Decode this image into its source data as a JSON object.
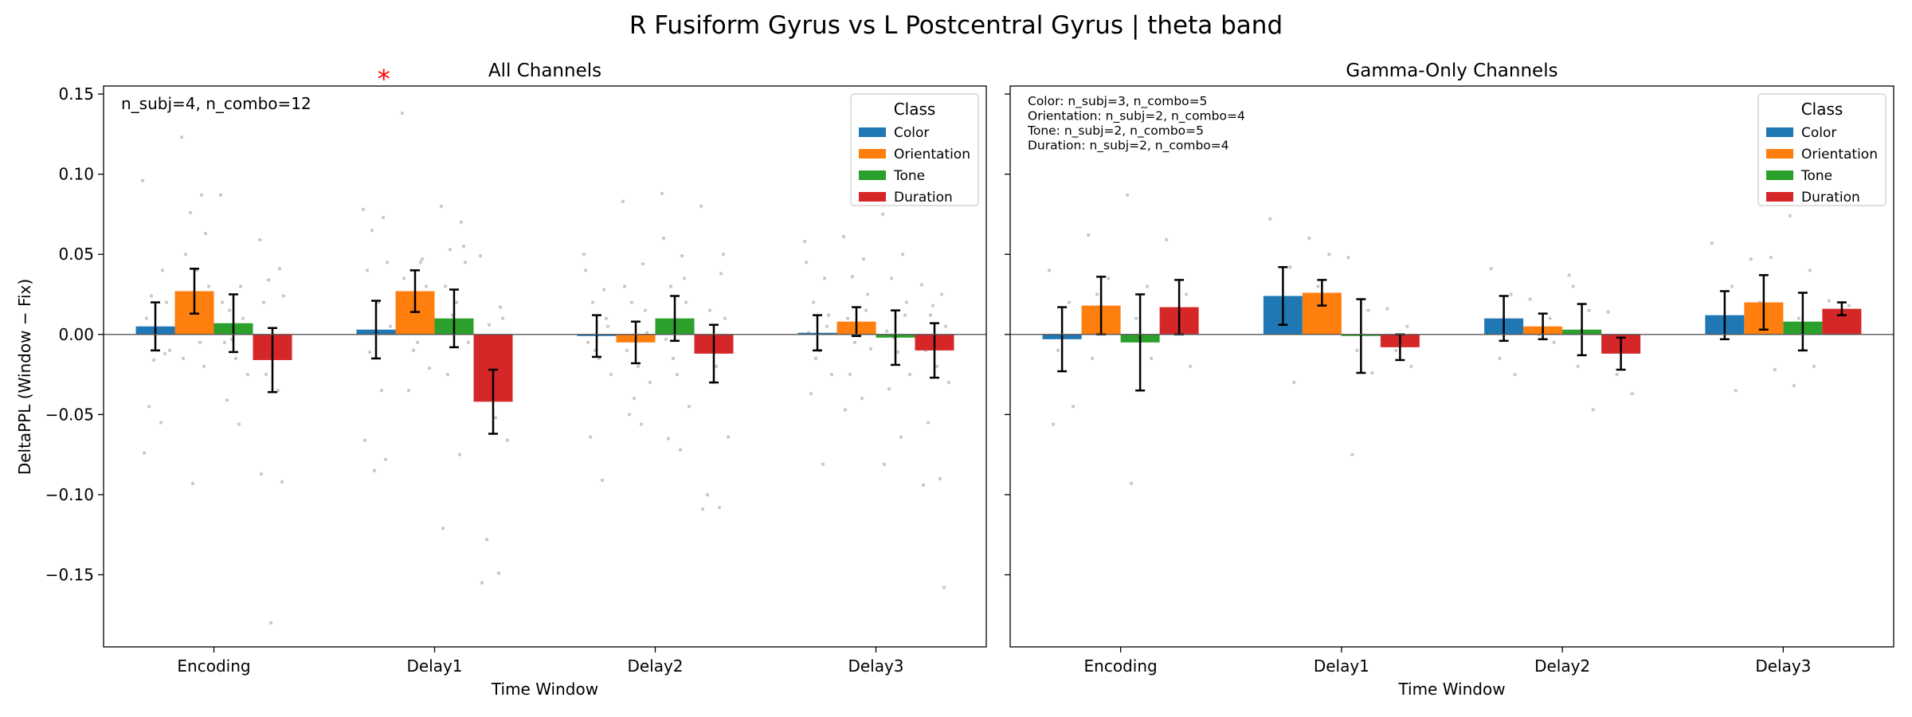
{
  "figure": {
    "suptitle": "R Fusiform Gyrus vs L Postcentral Gyrus  |  theta band",
    "ylabel": "DeltaPPL (Window − Fix)",
    "colors": {
      "Color": "#1f77b4",
      "Orientation": "#ff7f0e",
      "Tone": "#2ca02c",
      "Duration": "#d62728",
      "points": "#bbbbbb",
      "sig": "#ff0000"
    }
  },
  "chart_data": [
    {
      "type": "bar",
      "title": "All Channels",
      "xlabel": "Time Window",
      "ylabel": "DeltaPPL (Window − Fix)",
      "categories": [
        "Encoding",
        "Delay1",
        "Delay2",
        "Delay3"
      ],
      "ylim": [
        -0.195,
        0.155
      ],
      "yticks": [
        -0.15,
        -0.1,
        -0.05,
        0.0,
        0.05,
        0.1,
        0.15
      ],
      "ytick_labels": [
        "−0.15",
        "−0.10",
        "−0.05",
        "0.00",
        "0.05",
        "0.10",
        "0.15"
      ],
      "legend": {
        "title": "Class",
        "position": "top-right"
      },
      "annotation": "n_subj=4, n_combo=12",
      "significance": [
        {
          "category": "Delay1",
          "marker": "*"
        }
      ],
      "series": [
        {
          "name": "Color",
          "values": [
            0.005,
            0.003,
            -0.001,
            0.001
          ],
          "errors": [
            0.015,
            0.018,
            0.013,
            0.011
          ]
        },
        {
          "name": "Orientation",
          "values": [
            0.027,
            0.027,
            -0.005,
            0.008
          ],
          "errors": [
            0.014,
            0.013,
            0.013,
            0.009
          ]
        },
        {
          "name": "Tone",
          "values": [
            0.007,
            0.01,
            0.01,
            -0.002
          ],
          "errors": [
            0.018,
            0.018,
            0.014,
            0.017
          ]
        },
        {
          "name": "Duration",
          "values": [
            -0.016,
            -0.042,
            -0.012,
            -0.01
          ],
          "errors": [
            0.02,
            0.02,
            0.018,
            0.017
          ]
        }
      ],
      "points": [
        [
          [
            0.096,
            0.04,
            0.024,
            0.02,
            0.01,
            0.002,
            -0.01,
            -0.045,
            -0.055,
            -0.074,
            -0.012,
            -0.016
          ],
          [
            0.123,
            0.087,
            0.076,
            0.063,
            0.05,
            0.04,
            0.03,
            0.005,
            -0.005,
            -0.015,
            -0.02,
            -0.093
          ],
          [
            0.087,
            0.03,
            0.015,
            0.002,
            -0.005,
            -0.015,
            -0.025,
            -0.041,
            -0.056,
            0.02,
            0.01,
            -0.003
          ],
          [
            0.059,
            0.041,
            0.034,
            0.024,
            0.02,
            -0.005,
            -0.015,
            -0.025,
            -0.035,
            -0.087,
            -0.092,
            -0.18
          ]
        ],
        [
          [
            0.078,
            0.073,
            0.065,
            0.045,
            0.04,
            0.02,
            0.005,
            -0.011,
            -0.035,
            -0.066,
            -0.078,
            -0.085
          ],
          [
            0.138,
            0.047,
            0.04,
            0.03,
            0.005,
            -0.005,
            -0.021,
            -0.035,
            0.045,
            0.035,
            0.025,
            -0.01
          ],
          [
            0.08,
            0.07,
            0.053,
            0.045,
            0.03,
            0.02,
            -0.005,
            -0.025,
            -0.075,
            -0.121,
            0.055,
            0.012
          ],
          [
            0.049,
            0.017,
            0.006,
            -0.01,
            -0.03,
            -0.052,
            -0.066,
            -0.128,
            -0.149,
            -0.155,
            0.01,
            -0.02
          ]
        ],
        [
          [
            0.05,
            0.028,
            0.02,
            0.005,
            -0.005,
            -0.015,
            -0.025,
            -0.064,
            -0.091,
            0.04,
            0.01,
            -0.01
          ],
          [
            0.083,
            0.044,
            0.02,
            0.001,
            -0.01,
            -0.02,
            -0.03,
            -0.05,
            -0.056,
            0.03,
            0.015,
            -0.04
          ],
          [
            0.088,
            0.049,
            0.03,
            0.02,
            -0.003,
            -0.025,
            -0.045,
            -0.065,
            -0.072,
            0.06,
            0.035,
            -0.015
          ],
          [
            0.08,
            0.038,
            0.015,
            0.01,
            -0.005,
            -0.02,
            -0.064,
            -0.1,
            -0.108,
            -0.109,
            0.05,
            -0.03
          ]
        ],
        [
          [
            0.058,
            0.035,
            0.02,
            0.012,
            0.001,
            -0.01,
            -0.025,
            -0.037,
            -0.081,
            0.045,
            0.005,
            -0.015
          ],
          [
            0.061,
            0.047,
            0.036,
            0.025,
            0.01,
            0.002,
            -0.009,
            -0.025,
            -0.04,
            -0.047,
            0.015,
            -0.005
          ],
          [
            0.075,
            0.05,
            0.035,
            0.02,
            0.002,
            -0.011,
            -0.025,
            -0.034,
            -0.064,
            -0.081,
            0.012,
            -0.002
          ],
          [
            0.031,
            0.025,
            0.012,
            0.005,
            -0.01,
            -0.02,
            -0.03,
            -0.055,
            -0.09,
            -0.094,
            -0.158,
            0.018
          ]
        ]
      ]
    },
    {
      "type": "bar",
      "title": "Gamma-Only Channels",
      "xlabel": "Time Window",
      "categories": [
        "Encoding",
        "Delay1",
        "Delay2",
        "Delay3"
      ],
      "ylim": [
        -0.195,
        0.155
      ],
      "legend": {
        "title": "Class",
        "position": "top-right"
      },
      "annotation_lines": [
        "Color: n_subj=3, n_combo=5",
        "Orientation: n_subj=2, n_combo=4",
        "Tone: n_subj=2, n_combo=5",
        "Duration: n_subj=2, n_combo=4"
      ],
      "series": [
        {
          "name": "Color",
          "values": [
            -0.003,
            0.024,
            0.01,
            0.012
          ],
          "errors": [
            0.02,
            0.018,
            0.014,
            0.015
          ]
        },
        {
          "name": "Orientation",
          "values": [
            0.018,
            0.026,
            0.005,
            0.02
          ],
          "errors": [
            0.018,
            0.008,
            0.008,
            0.017
          ]
        },
        {
          "name": "Tone",
          "values": [
            -0.005,
            -0.001,
            0.003,
            0.008
          ],
          "errors": [
            0.03,
            0.023,
            0.016,
            0.018
          ]
        },
        {
          "name": "Duration",
          "values": [
            0.017,
            -0.008,
            -0.012,
            0.016
          ],
          "errors": [
            0.017,
            0.008,
            0.01,
            0.004
          ]
        }
      ],
      "points": [
        [
          [
            0.04,
            0.02,
            -0.01,
            -0.045,
            -0.056
          ],
          [
            0.062,
            0.035,
            0.025,
            0.01,
            -0.015
          ],
          [
            0.087,
            0.03,
            0.01,
            -0.015,
            -0.093
          ],
          [
            0.059,
            0.025,
            0.01,
            -0.02
          ]
        ],
        [
          [
            0.072,
            0.042,
            0.02,
            -0.03
          ],
          [
            0.06,
            0.05,
            0.03,
            0.02
          ],
          [
            0.048,
            0.015,
            -0.01,
            -0.024,
            -0.075
          ],
          [
            0.016,
            0.005,
            -0.01,
            -0.02
          ]
        ],
        [
          [
            0.041,
            0.025,
            -0.015,
            -0.025
          ],
          [
            0.022,
            0.01,
            0.0,
            -0.005
          ],
          [
            0.037,
            0.015,
            -0.02,
            -0.047,
            0.03
          ],
          [
            0.014,
            -0.01,
            -0.025,
            -0.037
          ]
        ],
        [
          [
            0.057,
            0.03,
            0.01,
            -0.035
          ],
          [
            0.047,
            0.048,
            0.02,
            -0.022
          ],
          [
            0.074,
            0.04,
            0.01,
            -0.02,
            -0.032
          ],
          [
            0.021,
            0.018,
            0.015,
            0.012
          ]
        ]
      ]
    }
  ]
}
